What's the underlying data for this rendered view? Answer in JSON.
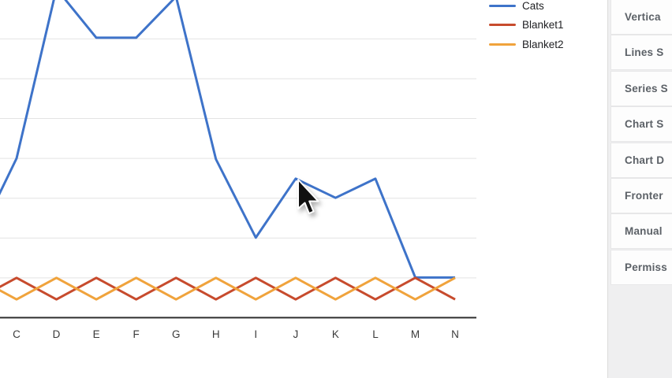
{
  "colors": {
    "grid": "#e3e3e3",
    "axis": "#2e2e2e",
    "axis_label": "#3a3a3a",
    "legend_text": "#202124",
    "panel_bg": "#efeff0",
    "row_bg": "#fdfdfd",
    "row_text": "#5c6167",
    "cursor": "#111111"
  },
  "chart_data": {
    "type": "line",
    "title": "",
    "xlabel": "",
    "ylabel": "",
    "grid": "horizontal-only",
    "legend_position": "top-right",
    "ylim_visible": [
      0,
      8
    ],
    "categories": [
      "C",
      "D",
      "E",
      "F",
      "G",
      "H",
      "I",
      "J",
      "K",
      "L",
      "M",
      "N"
    ],
    "series": [
      {
        "name": "Cats",
        "color": "#3e73c9",
        "values": [
          4.0,
          8.26,
          7.03,
          7.03,
          8.06,
          3.98,
          2.01,
          3.49,
          3.01,
          3.49,
          1.01,
          1.01
        ],
        "edge_value_left": 1.93
      },
      {
        "name": "Blanket1",
        "color": "#c74b2d",
        "values": [
          1,
          0.46,
          1,
          0.46,
          1,
          0.46,
          1,
          0.46,
          1,
          0.46,
          1,
          0.46
        ],
        "edge_value_left": 0.46
      },
      {
        "name": "Blanket2",
        "color": "#f0a33c",
        "values": [
          0.46,
          1,
          0.46,
          1,
          0.46,
          1,
          0.46,
          1,
          0.46,
          1,
          0.46,
          1
        ],
        "edge_value_left": 1
      }
    ],
    "note": "Top peaks of Cats and the y-axis tick labels are cropped outside the visible screenshot; values estimated in gridline units (1 unit per horizontal gridline, axis = 0)."
  },
  "legend": {
    "items": [
      {
        "label": "Cats",
        "color": "#3e73c9"
      },
      {
        "label": "Blanket1",
        "color": "#c74b2d"
      },
      {
        "label": "Blanket2",
        "color": "#f0a33c"
      }
    ]
  },
  "sidebar": {
    "items": [
      {
        "label": "Vertica"
      },
      {
        "label": "Lines S"
      },
      {
        "label": "Series S"
      },
      {
        "label": "Chart S"
      },
      {
        "label": "Chart D"
      },
      {
        "label": "Fronter"
      },
      {
        "label": "Manual"
      },
      {
        "label": "Permiss"
      }
    ]
  }
}
